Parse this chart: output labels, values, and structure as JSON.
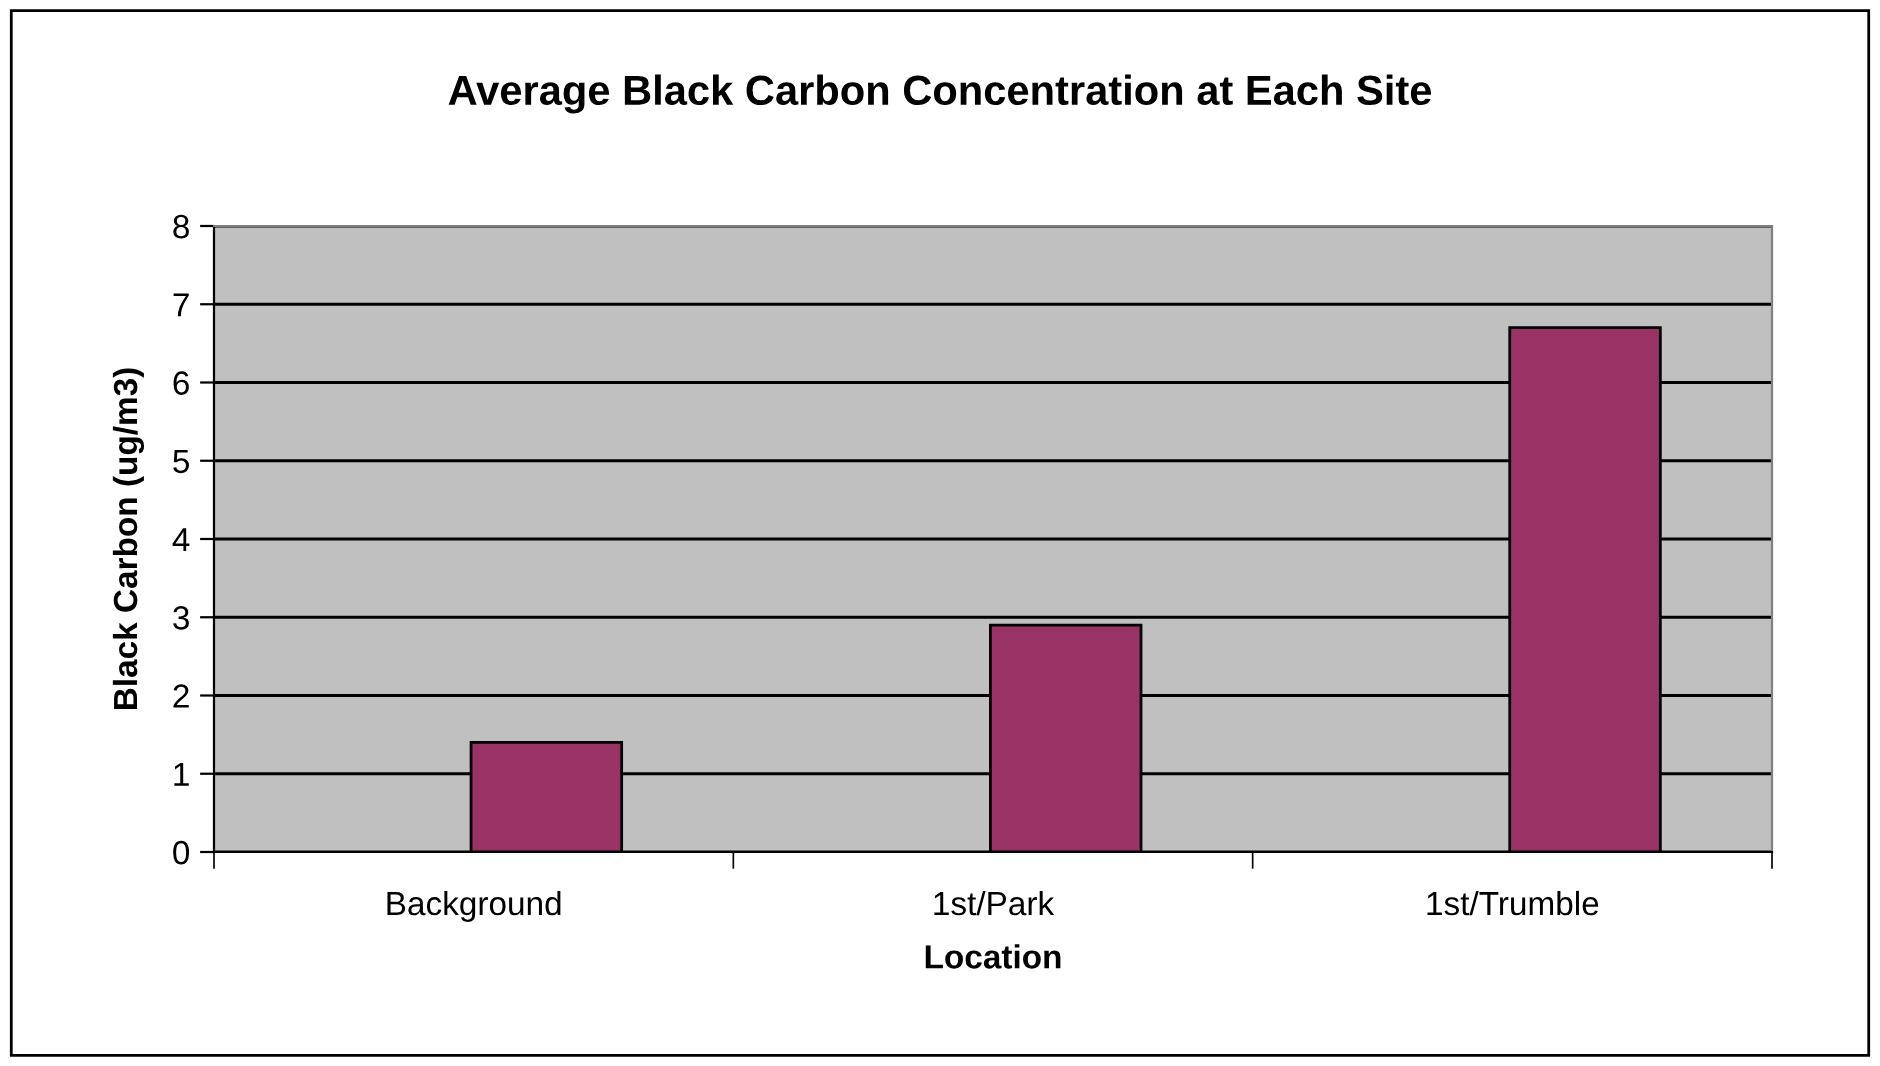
{
  "chart_data": {
    "type": "bar",
    "title": "Average Black Carbon Concentration at Each Site",
    "xlabel": "Location",
    "ylabel": "Black Carbon (ug/m3)",
    "categories": [
      "Background",
      "1st/Park",
      "1st/Trumble"
    ],
    "values": [
      1.4,
      2.9,
      6.7
    ],
    "color": "#993366",
    "ylim": [
      0,
      8
    ],
    "yticks": [
      0,
      1,
      2,
      3,
      4,
      5,
      6,
      7,
      8
    ],
    "grid": "y",
    "legend": false
  }
}
